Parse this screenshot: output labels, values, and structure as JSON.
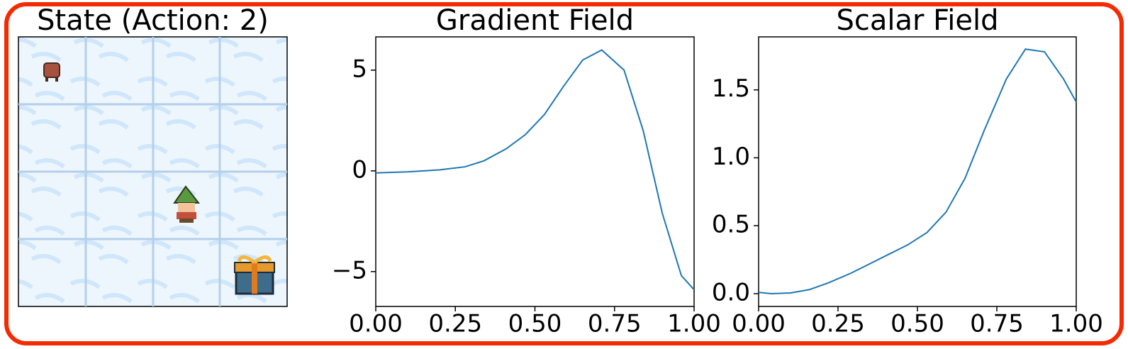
{
  "chart_data": [
    {
      "type": "image",
      "title": "State (Action: 2)"
    },
    {
      "type": "line",
      "title": "Gradient Field",
      "color": "#1f77b4",
      "x": [
        0,
        0.1,
        0.2,
        0.28,
        0.34,
        0.41,
        0.47,
        0.53,
        0.59,
        0.65,
        0.71,
        0.78,
        0.84,
        0.9,
        0.96,
        1.0
      ],
      "values": [
        -0.1,
        -0.05,
        0.05,
        0.2,
        0.5,
        1.1,
        1.8,
        2.8,
        4.2,
        5.5,
        6.0,
        5.0,
        2.0,
        -2.1,
        -5.2,
        -5.9
      ],
      "xlim": [
        0,
        1
      ],
      "ylim": [
        -6.73,
        6.65
      ],
      "xticks": [
        {
          "value": 0,
          "label": "0.00"
        },
        {
          "value": 0.25,
          "label": "0.25"
        },
        {
          "value": 0.5,
          "label": "0.50"
        },
        {
          "value": 0.75,
          "label": "0.75"
        },
        {
          "value": 1,
          "label": "1.00"
        }
      ],
      "yticks": [
        {
          "value": -5,
          "label": "−5"
        },
        0,
        5
      ]
    },
    {
      "type": "line",
      "title": "Scalar Field",
      "color": "#1f77b4",
      "x": [
        0,
        0.04,
        0.1,
        0.16,
        0.22,
        0.29,
        0.35,
        0.41,
        0.47,
        0.53,
        0.59,
        0.65,
        0.71,
        0.78,
        0.84,
        0.9,
        0.96,
        1.0
      ],
      "values": [
        0.01,
        0.0,
        0.005,
        0.03,
        0.08,
        0.15,
        0.22,
        0.29,
        0.36,
        0.45,
        0.6,
        0.85,
        1.2,
        1.58,
        1.8,
        1.78,
        1.58,
        1.41
      ],
      "xlim": [
        0,
        1
      ],
      "ylim": [
        -0.094,
        1.89
      ],
      "xticks": [
        {
          "value": 0,
          "label": "0.00"
        },
        {
          "value": 0.25,
          "label": "0.25"
        },
        {
          "value": 0.5,
          "label": "0.50"
        },
        {
          "value": 0.75,
          "label": "0.75"
        },
        {
          "value": 1,
          "label": "1.00"
        }
      ],
      "yticks": [
        {
          "value": 0,
          "label": "0.0"
        },
        0.5,
        {
          "value": 1,
          "label": "1.0"
        },
        1.5
      ]
    }
  ]
}
